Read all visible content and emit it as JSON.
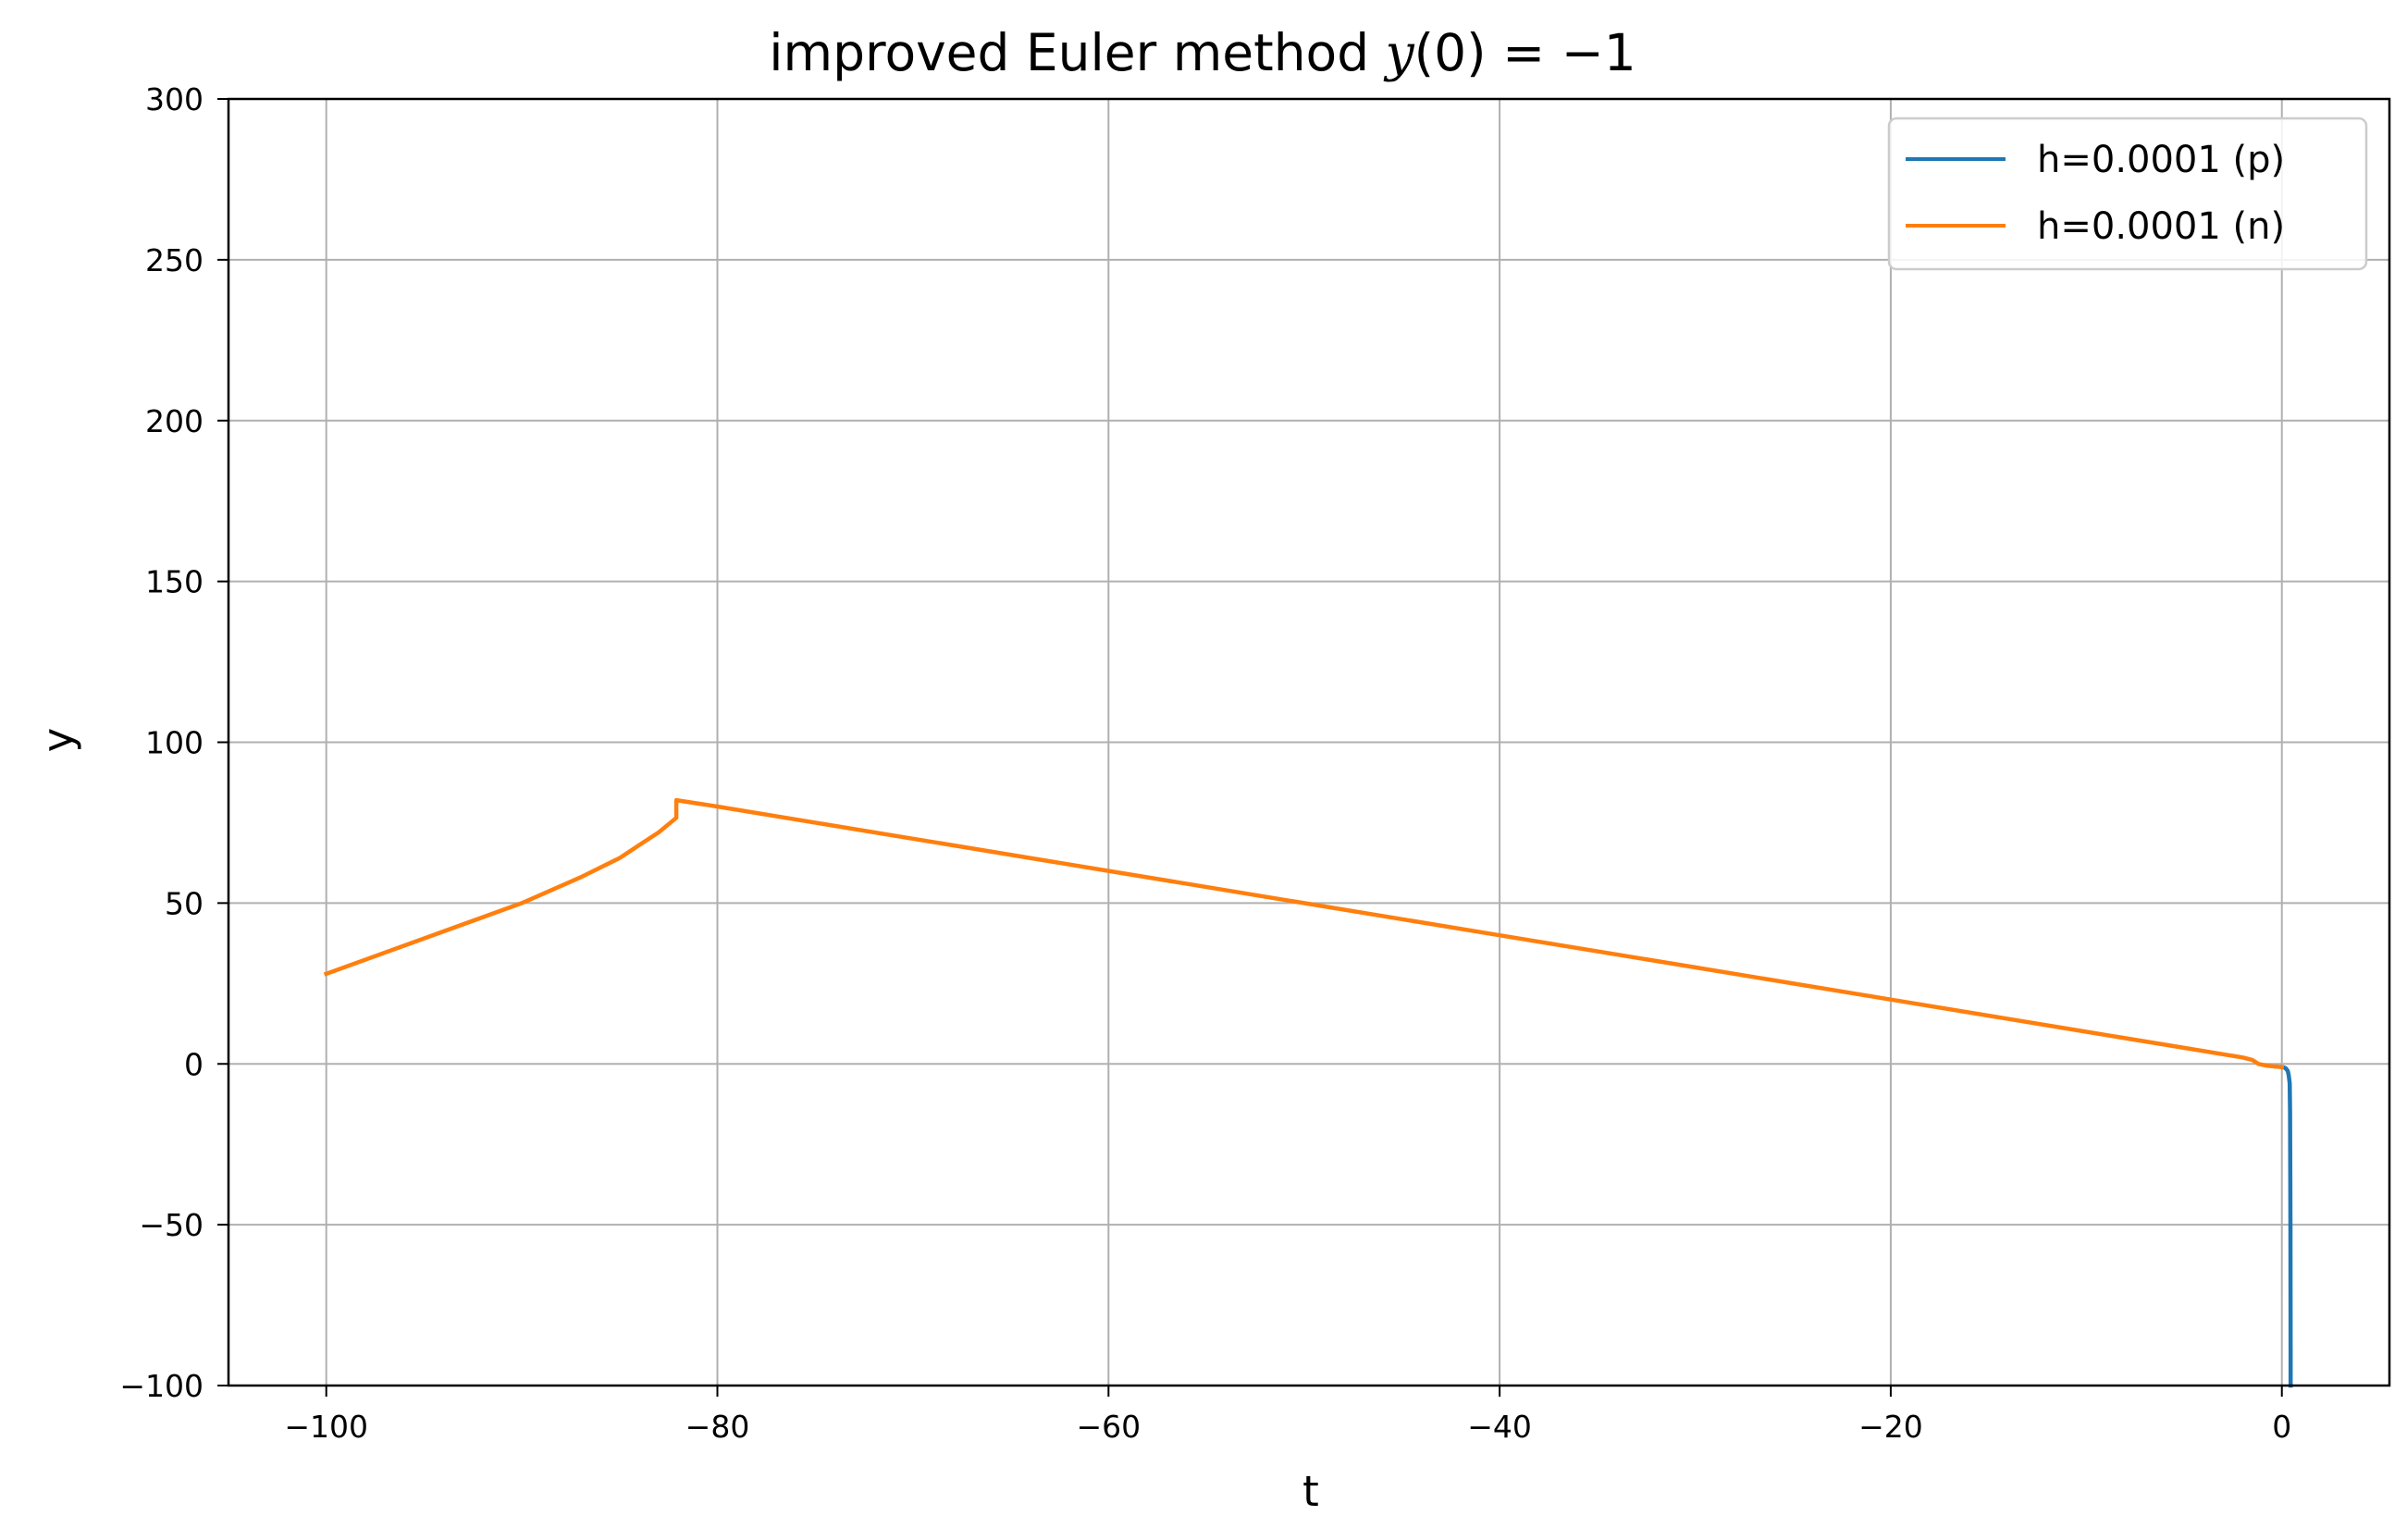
{
  "chart_data": {
    "type": "line",
    "title": {
      "prefix": "improved Euler method ",
      "math_var": "y",
      "math_rest": "(0) = −1"
    },
    "xlabel": "t",
    "ylabel": "y",
    "xlim": [
      -105,
      5.5
    ],
    "ylim": [
      -100,
      300
    ],
    "xticks": [
      -100,
      -80,
      -60,
      -40,
      -20,
      0
    ],
    "xtick_labels": [
      "−100",
      "−80",
      "−60",
      "−40",
      "−20",
      "0"
    ],
    "yticks": [
      -100,
      -50,
      0,
      50,
      100,
      150,
      200,
      250,
      300
    ],
    "ytick_labels": [
      "−100",
      "−50",
      "0",
      "50",
      "100",
      "150",
      "200",
      "250",
      "300"
    ],
    "grid": true,
    "legend_position": "upper right",
    "series": [
      {
        "name": "h=0.0001 (p)",
        "color": "#1f77b4",
        "x": [
          0,
          0.1,
          0.2,
          0.3,
          0.35,
          0.4,
          0.42,
          0.44,
          0.45,
          0.45
        ],
        "y": [
          -1,
          -1.1,
          -1.4,
          -2.2,
          -3.5,
          -6,
          -15,
          -50,
          -90,
          -100
        ]
      },
      {
        "name": "h=0.0001 (n)",
        "color": "#ff7f0e",
        "x": [
          -100,
          -95,
          -90,
          -87,
          -85,
          -84,
          -83,
          -82.3,
          -82.1,
          -82.1,
          -80,
          -70,
          -60,
          -50,
          -40,
          -30,
          -20,
          -10,
          -5,
          -2,
          -1.5,
          -1.2,
          -0.8,
          -0.4,
          0
        ],
        "y": [
          28,
          39,
          50,
          58,
          64,
          68,
          72,
          75.5,
          76.5,
          82,
          80,
          70,
          60,
          50,
          40,
          30,
          20,
          10,
          5,
          2,
          1.2,
          0,
          -0.5,
          -0.8,
          -1
        ]
      }
    ]
  }
}
